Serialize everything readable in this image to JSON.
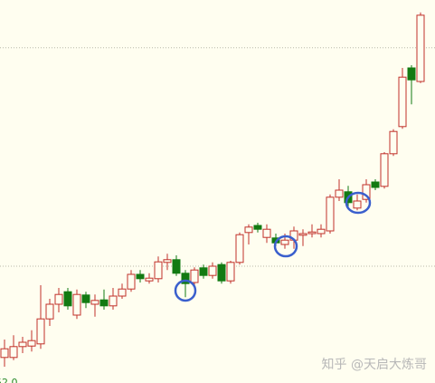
{
  "chart_data": {
    "type": "candlestick",
    "watermark": "知乎 @天启大炼哥",
    "up_color": "#c0302a",
    "down_color": "#127a12",
    "ylim": [
      51.95,
      59
    ],
    "yticks": [
      {
        "value": 52,
        "label": "52.0"
      }
    ],
    "gridlines": [
      58.12,
      54.1
    ],
    "open": [
      52.42,
      52.42,
      52.62,
      52.63,
      52.67,
      53.13,
      53.4,
      53.63,
      53.2,
      53.57,
      53.4,
      53.48,
      53.37,
      53.55,
      53.68,
      53.95,
      53.83,
      53.87,
      54.17,
      54.22,
      53.97,
      53.8,
      54.07,
      53.93,
      54.13,
      53.83,
      54.17,
      54.72,
      54.85,
      54.63,
      54.62,
      54.5,
      54.58,
      54.67,
      54.7,
      54.7,
      54.75,
      55.37,
      55.47,
      55.17,
      55.33,
      55.65,
      55.57,
      56.17,
      56.67,
      57.75,
      57.5
    ],
    "high": [
      52.75,
      52.83,
      52.8,
      52.92,
      53.75,
      53.5,
      53.7,
      53.7,
      53.67,
      53.63,
      53.58,
      53.67,
      53.7,
      53.78,
      54.03,
      54.03,
      53.97,
      54.28,
      54.33,
      54.3,
      54.03,
      54.08,
      54.13,
      54.17,
      54.17,
      54.2,
      54.72,
      54.87,
      54.9,
      54.87,
      54.7,
      54.7,
      54.83,
      54.78,
      54.87,
      54.87,
      55.42,
      55.7,
      55.58,
      55.42,
      55.7,
      55.7,
      56.2,
      56.62,
      57.75,
      57.8,
      58.77
    ],
    "low": [
      52.25,
      52.37,
      52.5,
      52.53,
      52.58,
      53.0,
      53.25,
      53.3,
      53.13,
      53.33,
      53.17,
      53.3,
      53.3,
      53.5,
      53.63,
      53.8,
      53.78,
      53.8,
      54.03,
      53.92,
      53.53,
      53.7,
      53.87,
      53.87,
      53.78,
      53.78,
      54.13,
      54.5,
      54.72,
      54.53,
      54.47,
      54.42,
      54.42,
      54.47,
      54.63,
      54.63,
      54.7,
      55.3,
      55.2,
      55.13,
      55.27,
      55.5,
      55.53,
      56.13,
      56.63,
      57.08,
      57.47
    ],
    "close": [
      52.58,
      52.62,
      52.7,
      52.73,
      53.13,
      53.4,
      53.58,
      53.37,
      53.58,
      53.43,
      53.47,
      53.37,
      53.55,
      53.68,
      53.95,
      53.87,
      53.88,
      54.18,
      54.22,
      53.97,
      53.78,
      54.03,
      53.93,
      54.1,
      53.83,
      54.17,
      54.68,
      54.82,
      54.78,
      54.78,
      54.53,
      54.58,
      54.75,
      54.7,
      54.73,
      54.78,
      55.37,
      55.5,
      55.27,
      55.3,
      55.6,
      55.55,
      56.17,
      56.58,
      57.58,
      57.53,
      58.72
    ]
  }
}
